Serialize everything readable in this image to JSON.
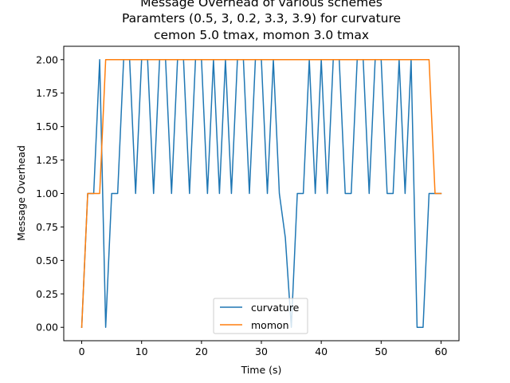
{
  "chart_data": {
    "type": "line",
    "title_lines": [
      "Message Overhead of various schemes",
      "Paramters (0.5, 3, 0.2, 3.3, 3.9) for curvature",
      "cemon 5.0 tmax, momon 3.0 tmax"
    ],
    "xlabel": "Time (s)",
    "ylabel": "Message Overhead",
    "xlim": [
      -3,
      63
    ],
    "ylim": [
      -0.1,
      2.1
    ],
    "xticks": [
      0,
      10,
      20,
      30,
      40,
      50,
      60
    ],
    "yticks": [
      0.0,
      0.25,
      0.5,
      0.75,
      1.0,
      1.25,
      1.5,
      1.75,
      2.0
    ],
    "ytick_labels": [
      "0.00",
      "0.25",
      "0.50",
      "0.75",
      "1.00",
      "1.25",
      "1.50",
      "1.75",
      "2.00"
    ],
    "legend": {
      "placement": "lower-center"
    },
    "series": [
      {
        "name": "curvature",
        "color": "#1f77b4",
        "x": [
          0,
          1,
          2,
          3,
          4,
          5,
          6,
          7,
          8,
          9,
          10,
          11,
          12,
          13,
          14,
          15,
          16,
          17,
          18,
          19,
          20,
          21,
          22,
          23,
          24,
          25,
          26,
          27,
          28,
          29,
          30,
          31,
          32,
          33,
          34,
          35,
          36,
          37,
          38,
          39,
          40,
          41,
          42,
          43,
          44,
          45,
          46,
          47,
          48,
          49,
          50,
          51,
          52,
          53,
          54,
          55,
          56,
          57,
          58,
          59,
          60
        ],
        "y": [
          0,
          1,
          1,
          2,
          0,
          1,
          1,
          2,
          2,
          1,
          2,
          2,
          1,
          2,
          2,
          1,
          2,
          2,
          1,
          2,
          2,
          1,
          2,
          1,
          2,
          1,
          2,
          2,
          1,
          2,
          2,
          1,
          2,
          1,
          0.67,
          0,
          1,
          1,
          2,
          1,
          2,
          1,
          2,
          2,
          1,
          1,
          2,
          2,
          1,
          2,
          2,
          1,
          1,
          2,
          1,
          2,
          0,
          0,
          1,
          1,
          1
        ]
      },
      {
        "name": "momon",
        "color": "#ff7f0e",
        "x": [
          0,
          1,
          2,
          3,
          4,
          5,
          58,
          59,
          60
        ],
        "y": [
          0,
          1,
          1,
          1,
          2,
          2,
          2,
          1,
          1
        ]
      }
    ]
  }
}
